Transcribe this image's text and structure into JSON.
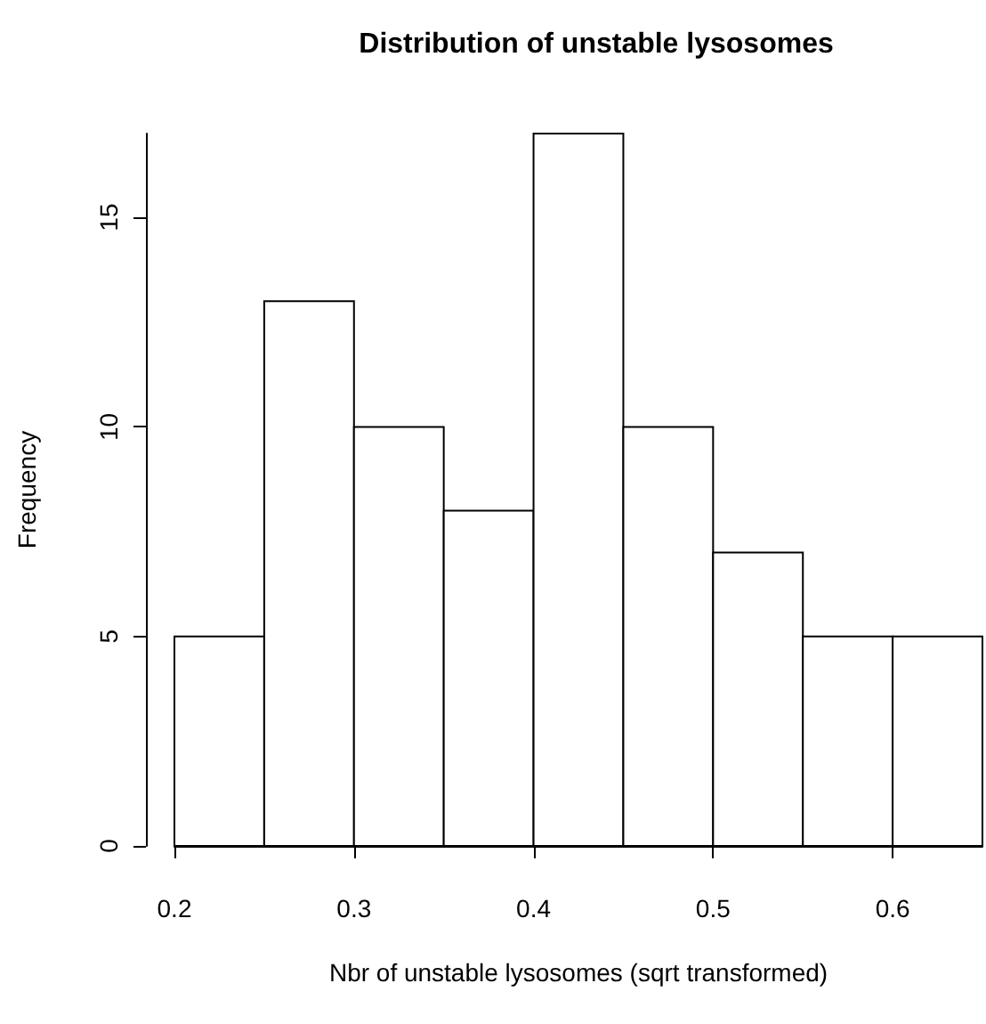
{
  "chart_data": {
    "type": "histogram",
    "title": "Distribution of unstable lysosomes",
    "xlabel": "Nbr of unstable lysosomes (sqrt transformed)",
    "ylabel": "Frequency",
    "bins": [
      0.2,
      0.25,
      0.3,
      0.35,
      0.4,
      0.45,
      0.5,
      0.55,
      0.6,
      0.65
    ],
    "values": [
      5,
      13,
      10,
      8,
      17,
      10,
      7,
      5,
      5
    ],
    "color": "#ffffff",
    "xlim": [
      0.2,
      0.65
    ],
    "ylim": [
      0,
      17
    ],
    "xticks": [
      0.2,
      0.3,
      0.4,
      0.5,
      0.6
    ],
    "yticks": [
      0,
      5,
      10,
      15
    ],
    "grid": false
  }
}
